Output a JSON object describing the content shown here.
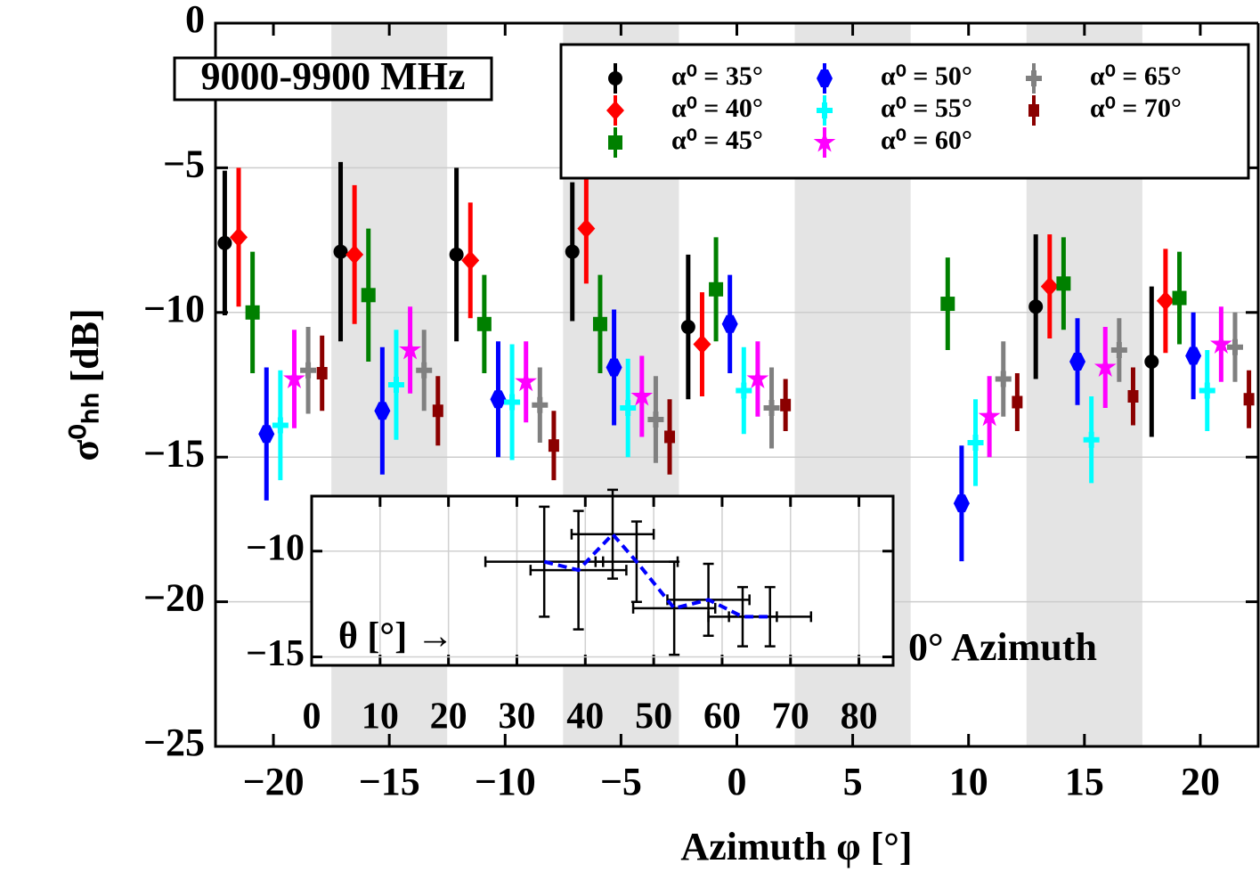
{
  "chart_data": [
    {
      "type": "errorbar",
      "xlabel": "Azimuth φ [°]",
      "ylabel": "σ⁰ₕₕ [dB]",
      "annotations": [
        "9000-9900 MHz",
        "0° Azimuth"
      ],
      "xlim": [
        -22.5,
        22.5
      ],
      "ylim": [
        -25,
        0
      ],
      "xticks": [
        {
          "value": -20,
          "label": "−20"
        },
        {
          "value": -15,
          "label": "−15"
        },
        {
          "value": -10,
          "label": "−10"
        },
        {
          "value": -5,
          "label": "−5"
        },
        0,
        5,
        10,
        15,
        20
      ],
      "yticks": [
        {
          "value": -25,
          "label": "−25"
        },
        {
          "value": -20,
          "label": "−20"
        },
        {
          "value": -15,
          "label": "−15"
        },
        {
          "value": -10,
          "label": "−10"
        },
        {
          "value": -5,
          "label": "−5"
        },
        0
      ],
      "grid": "y",
      "legend": "upper right",
      "bands": [
        [
          -17.5,
          -12.5
        ],
        [
          -7.5,
          -2.5
        ],
        [
          2.5,
          7.5
        ],
        [
          12.5,
          17.5
        ]
      ],
      "band_color": "#e4e4e4",
      "series": [
        {
          "name": "α⁰ = 35°",
          "color": "#000000",
          "marker": "circle",
          "x": [
            -22.1,
            -17.1,
            -12.1,
            -7.1,
            -2.1,
            7.9,
            12.9,
            17.9
          ],
          "values": [
            -7.6,
            -7.9,
            -8.0,
            -7.9,
            -10.5,
            null,
            -9.8,
            -11.7
          ],
          "errors": [
            2.5,
            3.1,
            3.0,
            2.4,
            2.5,
            null,
            2.5,
            2.6
          ]
        },
        {
          "name": "α⁰ = 40°",
          "color": "#ff0000",
          "marker": "diamond",
          "x": [
            -21.5,
            -16.5,
            -11.5,
            -6.5,
            -1.5,
            8.5,
            13.5,
            18.5
          ],
          "values": [
            -7.4,
            -8.0,
            -8.2,
            -7.1,
            -11.1,
            null,
            -9.1,
            -9.6
          ],
          "errors": [
            2.4,
            2.4,
            2.0,
            1.9,
            1.8,
            null,
            1.8,
            1.8
          ]
        },
        {
          "name": "α⁰ = 45°",
          "color": "#008000",
          "marker": "square",
          "x": [
            -20.9,
            -15.9,
            -10.9,
            -5.9,
            -0.9,
            9.1,
            14.1,
            19.1
          ],
          "values": [
            -10.0,
            -9.4,
            -10.4,
            -10.4,
            -9.2,
            -9.7,
            -9.0,
            -9.5
          ],
          "errors": [
            2.1,
            2.3,
            1.7,
            1.7,
            1.8,
            1.6,
            1.6,
            1.6
          ]
        },
        {
          "name": "α⁰ = 50°",
          "color": "#0000ff",
          "marker": "hexagon",
          "x": [
            -20.3,
            -15.3,
            -10.3,
            -5.3,
            -0.3,
            9.7,
            14.7,
            19.7
          ],
          "values": [
            -14.2,
            -13.4,
            -13.0,
            -11.9,
            -10.4,
            -16.6,
            -11.7,
            -11.5
          ],
          "errors": [
            2.3,
            2.2,
            2.0,
            2.0,
            1.7,
            2.0,
            1.5,
            1.5
          ]
        },
        {
          "name": "α⁰ = 55°",
          "color": "#00ffff",
          "marker": "plus",
          "x": [
            -19.7,
            -14.7,
            -9.7,
            -4.7,
            0.3,
            10.3,
            15.3,
            20.3
          ],
          "values": [
            -13.9,
            -12.5,
            -13.1,
            -13.3,
            -12.7,
            -14.5,
            -14.4,
            -12.7
          ],
          "errors": [
            1.9,
            1.9,
            2.0,
            1.7,
            1.5,
            1.5,
            1.5,
            1.4
          ]
        },
        {
          "name": "α⁰ = 60°",
          "color": "#ff00ff",
          "marker": "star",
          "x": [
            -19.1,
            -14.1,
            -9.1,
            -4.1,
            0.9,
            10.9,
            15.9,
            20.9
          ],
          "values": [
            -12.3,
            -11.3,
            -12.4,
            -12.9,
            -12.3,
            -13.6,
            -11.9,
            -11.1
          ],
          "errors": [
            1.7,
            1.5,
            1.4,
            1.4,
            1.3,
            1.4,
            1.4,
            1.3
          ]
        },
        {
          "name": "α⁰ = 65°",
          "color": "#808080",
          "marker": "plus",
          "x": [
            -18.5,
            -13.5,
            -8.5,
            -3.5,
            1.5,
            11.5,
            16.5,
            21.5
          ],
          "values": [
            -12.0,
            -12.0,
            -13.2,
            -13.7,
            -13.3,
            -12.3,
            -11.3,
            -11.2
          ],
          "errors": [
            1.5,
            1.4,
            1.3,
            1.5,
            1.4,
            1.3,
            1.1,
            1.2
          ]
        },
        {
          "name": "α⁰ = 70°",
          "color": "#8b0000",
          "marker": "small-square",
          "x": [
            -17.9,
            -12.9,
            -7.9,
            -2.9,
            2.1,
            12.1,
            17.1,
            22.1
          ],
          "values": [
            -12.1,
            -13.4,
            -14.6,
            -14.3,
            -13.2,
            -13.1,
            -12.9,
            -13.0
          ],
          "errors": [
            1.3,
            1.2,
            1.2,
            1.3,
            0.9,
            1.0,
            1.0,
            1.0
          ]
        }
      ]
    },
    {
      "type": "line",
      "xlabel": "θ [°] →",
      "xlim": [
        0,
        85
      ],
      "ylim": [
        -15.4,
        -7.4
      ],
      "xticks": [
        0,
        10,
        20,
        30,
        40,
        50,
        60,
        70,
        80
      ],
      "yticks": [
        {
          "value": -10,
          "label": "−10"
        },
        {
          "value": -15,
          "label": "−15"
        }
      ],
      "grid": true,
      "color": "#000000",
      "line_color": "#0000ff",
      "x": [
        34,
        39,
        44,
        47.5,
        53,
        58,
        63,
        67
      ],
      "values": [
        -10.5,
        -10.9,
        -9.2,
        -10.5,
        -12.7,
        -12.3,
        -13.1,
        -13.1
      ],
      "xerr": [
        8.6,
        7,
        6,
        6,
        6,
        6,
        5,
        6
      ],
      "yerr": [
        2.6,
        2.8,
        2.1,
        1.9,
        2.2,
        1.7,
        1.4,
        1.4
      ]
    }
  ]
}
